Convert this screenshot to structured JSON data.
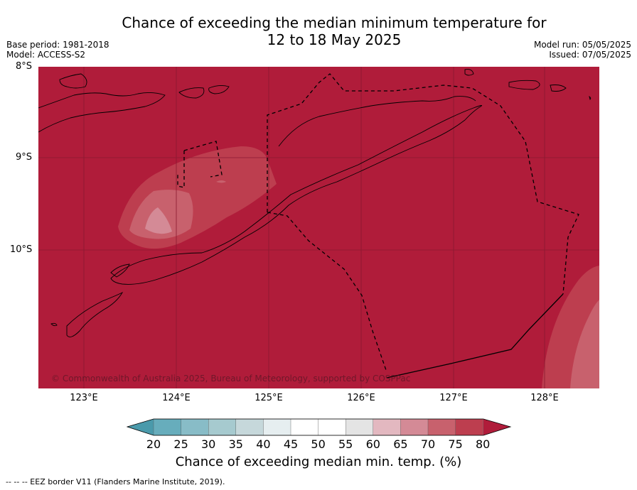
{
  "title": {
    "line1": "Chance of exceeding the median minimum temperature for",
    "line2": "12 to 18 May 2025"
  },
  "meta_left": {
    "base_period": "Base period: 1981-2018",
    "model": "Model: ACCESS-S2"
  },
  "meta_right": {
    "model_run": "Model run: 05/05/2025",
    "issued": "Issued: 07/05/2025"
  },
  "map": {
    "lat_labels": [
      "8°S",
      "9°S",
      "10°S"
    ],
    "lon_labels": [
      "123°E",
      "124°E",
      "125°E",
      "126°E",
      "127°E",
      "128°E"
    ],
    "copyright": "© Commonwealth of Australia 2025, Bureau of Meteorology, supported by COSPPac"
  },
  "colorbar": {
    "ticks": [
      "20",
      "25",
      "30",
      "35",
      "40",
      "45",
      "50",
      "55",
      "60",
      "65",
      "70",
      "75",
      "80"
    ],
    "label": "Chance of exceeding median min. temp. (%)",
    "colors": [
      "#4a9aab",
      "#67adbc",
      "#88bcc7",
      "#a6cacf",
      "#c6d8db",
      "#e6eef0",
      "#ffffff",
      "#ffffff",
      "#e4e4e4",
      "#e3b8c0",
      "#d48a96",
      "#c8616d",
      "#bd3e4f",
      "#b01c3a"
    ]
  },
  "footnote": "--  --  -- EEZ border V11 (Flanders Marine Institute, 2019)."
}
